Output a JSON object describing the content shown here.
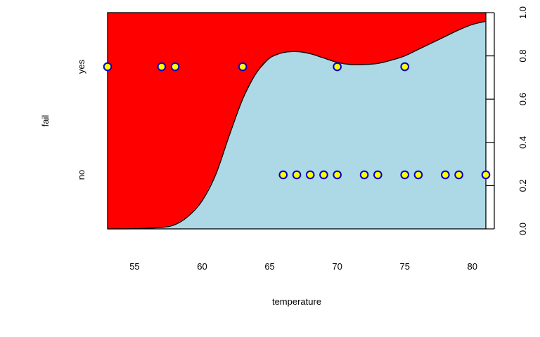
{
  "chart_data": {
    "type": "spineplot",
    "xlabel": "temperature",
    "ylabel": "fail",
    "categories": [
      "no",
      "yes"
    ],
    "colors": {
      "no": "#add8e6",
      "yes": "#ff0000",
      "point_fill": "#ffff00",
      "point_stroke": "#0000cd"
    },
    "xlim": [
      53,
      81
    ],
    "ylim": [
      0,
      1
    ],
    "x_ticks": [
      55,
      60,
      65,
      70,
      75,
      80
    ],
    "right_ticks": [
      "0.0",
      "0.2",
      "0.4",
      "0.6",
      "0.8",
      "1.0"
    ],
    "left_ticks": [
      "no",
      "yes"
    ],
    "boundary": [
      [
        53,
        0.0
      ],
      [
        55,
        0.001
      ],
      [
        57,
        0.007
      ],
      [
        58,
        0.02
      ],
      [
        59,
        0.06
      ],
      [
        60,
        0.13
      ],
      [
        61,
        0.25
      ],
      [
        62,
        0.43
      ],
      [
        63,
        0.6
      ],
      [
        64,
        0.72
      ],
      [
        65,
        0.79
      ],
      [
        66,
        0.815
      ],
      [
        67,
        0.82
      ],
      [
        68,
        0.81
      ],
      [
        69,
        0.79
      ],
      [
        70,
        0.77
      ],
      [
        71,
        0.76
      ],
      [
        72,
        0.76
      ],
      [
        73,
        0.765
      ],
      [
        74,
        0.78
      ],
      [
        75,
        0.8
      ],
      [
        76,
        0.83
      ],
      [
        77,
        0.86
      ],
      [
        78,
        0.89
      ],
      [
        79,
        0.92
      ],
      [
        80,
        0.945
      ],
      [
        81,
        0.96
      ]
    ],
    "points": {
      "yes": [
        53,
        57,
        58,
        63,
        70,
        75
      ],
      "no": [
        66,
        67,
        68,
        69,
        70,
        72,
        73,
        75,
        76,
        78,
        79,
        81
      ]
    }
  }
}
